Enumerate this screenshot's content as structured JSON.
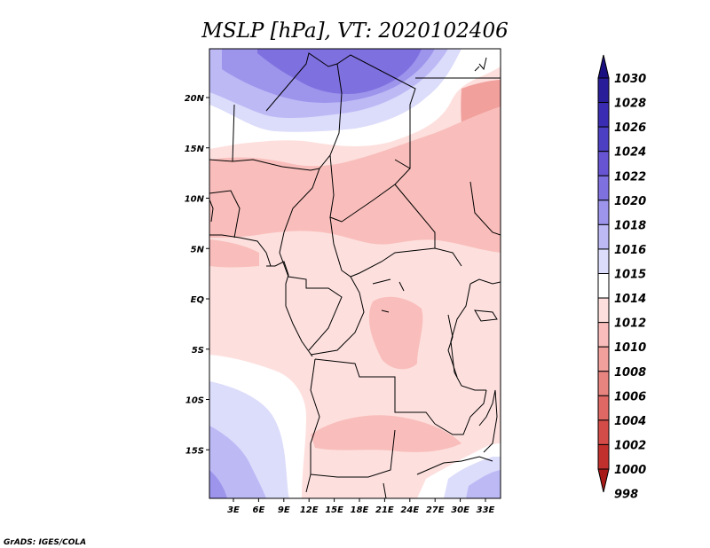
{
  "title": "MSLP [hPa], VT: 2020102406",
  "credit": "GrADS: IGES/COLA",
  "y_ticks": [
    "20N",
    "15N",
    "10N",
    "5N",
    "EQ",
    "5S",
    "10S",
    "15S"
  ],
  "x_ticks": [
    "3E",
    "6E",
    "9E",
    "12E",
    "15E",
    "18E",
    "21E",
    "24E",
    "27E",
    "30E",
    "33E"
  ],
  "colorbar": {
    "levels": [
      "1030",
      "1028",
      "1026",
      "1024",
      "1022",
      "1020",
      "1018",
      "1016",
      "1015",
      "1014",
      "1012",
      "1010",
      "1008",
      "1006",
      "1004",
      "1002",
      "1000",
      "998"
    ],
    "colors": [
      "#1a0f80",
      "#2a1d99",
      "#3b2db3",
      "#4d3fc4",
      "#6654d3",
      "#7f70e0",
      "#9d94ec",
      "#bdb9f5",
      "#dcdcfb",
      "#ffffff",
      "#fde0de",
      "#f9bebb",
      "#f1a09c",
      "#e88480",
      "#df6864",
      "#d44c48",
      "#c2302d",
      "#a81a17"
    ]
  },
  "palette": {
    "lavender": "#dcdcfb",
    "light_blue": "#bdb9f5",
    "mid_blue": "#9d94ec",
    "deep_blue": "#7f70e0",
    "pale_pink": "#fde0de",
    "pink": "#f9bebb",
    "salmon": "#f1a09c"
  }
}
